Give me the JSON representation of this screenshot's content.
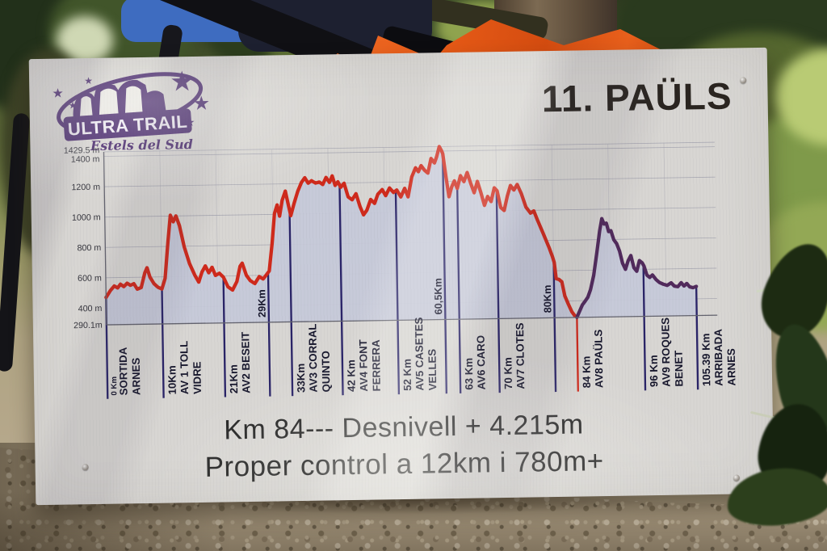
{
  "board": {
    "logo": {
      "title": "ULTRA TRAIL",
      "subtitle": "Estels del Sud"
    },
    "station_title": "11. PAÜLS",
    "footer": {
      "line1": "Km 84--- Desnivell + 4.215m",
      "line2": "Proper control a 12km i 780m+"
    }
  },
  "chart_data": {
    "type": "area",
    "title": "11. PAÜLS",
    "xlabel": "Km",
    "ylabel": "m",
    "xlim": [
      0,
      105.39
    ],
    "ylim": [
      290.1,
      1429.5
    ],
    "legend": "none",
    "grid": "on",
    "x_grid_step_km": 10,
    "colors": {
      "completed_segment": "#cf2a1c",
      "remaining_segment": "#512a5c",
      "checkpoint_line": "#2a2468",
      "area_fill": "#c6c9d9",
      "grid_line": "#a3a3af",
      "axis_line": "#63636e",
      "label_text": "#16162c",
      "tick_text": "#35353d"
    },
    "split_km": 84,
    "y_ticks": [
      {
        "value": 1429.5,
        "label": "1429.5 m"
      },
      {
        "value": 1400,
        "label": "1400 m"
      },
      {
        "value": 1200,
        "label": "1200 m"
      },
      {
        "value": 1000,
        "label": "1000 m"
      },
      {
        "value": 800,
        "label": "800 m"
      },
      {
        "value": 600,
        "label": "600 m"
      },
      {
        "value": 400,
        "label": "400 m"
      },
      {
        "value": 290.1,
        "label": "290.1m"
      }
    ],
    "checkpoints": [
      {
        "km": 0,
        "km_label": "0 Km",
        "name_lines": [
          "SORTIDA",
          "ARNES"
        ],
        "small_km": true
      },
      {
        "km": 10,
        "km_label": "10Km",
        "name_lines": [
          "AV 1 TOLL",
          "VIDRE"
        ]
      },
      {
        "km": 21,
        "km_label": "21Km",
        "name_lines": [
          "AV2 BESEIT"
        ]
      },
      {
        "km": 29,
        "km_label": "29Km",
        "name_lines": [],
        "inside": true
      },
      {
        "km": 33,
        "km_label": "33Km",
        "name_lines": [
          "AV3 CORRAL",
          "QUINTO"
        ]
      },
      {
        "km": 42,
        "km_label": "42 Km",
        "name_lines": [
          "AV4 FONT",
          "FERRERA"
        ]
      },
      {
        "km": 52,
        "km_label": "52 Km",
        "name_lines": [
          "AV5 CASETES",
          "VELLES"
        ]
      },
      {
        "km": 60.5,
        "km_label": "60,5Km",
        "name_lines": [],
        "inside": true
      },
      {
        "km": 63,
        "km_label": "63 Km",
        "name_lines": [
          "AV6 CARO"
        ]
      },
      {
        "km": 70,
        "km_label": "70 Km",
        "name_lines": [
          "AV7 CLOTES"
        ]
      },
      {
        "km": 80,
        "km_label": "80Km",
        "name_lines": [],
        "inside": true
      },
      {
        "km": 84,
        "km_label": "84 Km",
        "name_lines": [
          "AV8 PAÜLS"
        ],
        "line_color": "#cf2a1c"
      },
      {
        "km": 96,
        "km_label": "96 Km",
        "name_lines": [
          "AV9 ROQUES",
          "BENET"
        ]
      },
      {
        "km": 105.39,
        "km_label": "105.39 Km",
        "name_lines": [
          "ARRIBADA",
          "ARNES"
        ]
      }
    ],
    "profile": [
      [
        0,
        470
      ],
      [
        0.8,
        515
      ],
      [
        1.5,
        545
      ],
      [
        2.1,
        532
      ],
      [
        2.6,
        556
      ],
      [
        3.2,
        540
      ],
      [
        3.8,
        562
      ],
      [
        4.4,
        548
      ],
      [
        5,
        558
      ],
      [
        5.6,
        522
      ],
      [
        6.3,
        532
      ],
      [
        7,
        630
      ],
      [
        7.4,
        662
      ],
      [
        7.9,
        600
      ],
      [
        8.6,
        556
      ],
      [
        9.3,
        532
      ],
      [
        10,
        520
      ],
      [
        10.6,
        590
      ],
      [
        11.2,
        830
      ],
      [
        11.7,
        1005
      ],
      [
        12.2,
        962
      ],
      [
        12.7,
        1000
      ],
      [
        13.3,
        935
      ],
      [
        14.1,
        795
      ],
      [
        15,
        685
      ],
      [
        15.9,
        608
      ],
      [
        16.6,
        562
      ],
      [
        17.2,
        628
      ],
      [
        17.8,
        668
      ],
      [
        18.4,
        622
      ],
      [
        19,
        658
      ],
      [
        19.6,
        604
      ],
      [
        20.3,
        618
      ],
      [
        21,
        592
      ],
      [
        21.8,
        528
      ],
      [
        22.6,
        506
      ],
      [
        23.4,
        562
      ],
      [
        24,
        662
      ],
      [
        24.4,
        682
      ],
      [
        25.1,
        602
      ],
      [
        25.8,
        566
      ],
      [
        26.6,
        546
      ],
      [
        27.4,
        592
      ],
      [
        28.1,
        576
      ],
      [
        28.8,
        608
      ],
      [
        29.2,
        628
      ],
      [
        29.8,
        810
      ],
      [
        30.3,
        1005
      ],
      [
        30.8,
        1062
      ],
      [
        31.2,
        988
      ],
      [
        31.7,
        1092
      ],
      [
        32.3,
        1152
      ],
      [
        32.8,
        1062
      ],
      [
        33.2,
        990
      ],
      [
        33.8,
        1068
      ],
      [
        34.5,
        1148
      ],
      [
        35.2,
        1208
      ],
      [
        35.8,
        1238
      ],
      [
        36.4,
        1202
      ],
      [
        37,
        1218
      ],
      [
        37.7,
        1202
      ],
      [
        38.4,
        1208
      ],
      [
        39,
        1192
      ],
      [
        39.6,
        1238
      ],
      [
        40.2,
        1205
      ],
      [
        40.7,
        1248
      ],
      [
        41.2,
        1185
      ],
      [
        41.7,
        1208
      ],
      [
        42.2,
        1172
      ],
      [
        42.8,
        1198
      ],
      [
        43.5,
        1108
      ],
      [
        44.2,
        1088
      ],
      [
        44.9,
        1128
      ],
      [
        45.6,
        1042
      ],
      [
        46.2,
        988
      ],
      [
        46.8,
        1018
      ],
      [
        47.5,
        1088
      ],
      [
        48.2,
        1062
      ],
      [
        48.8,
        1122
      ],
      [
        49.6,
        1152
      ],
      [
        50.2,
        1112
      ],
      [
        50.9,
        1162
      ],
      [
        51.6,
        1132
      ],
      [
        52.2,
        1148
      ],
      [
        52.9,
        1102
      ],
      [
        53.6,
        1158
      ],
      [
        54.2,
        1102
      ],
      [
        54.9,
        1232
      ],
      [
        55.6,
        1292
      ],
      [
        56.1,
        1266
      ],
      [
        56.6,
        1306
      ],
      [
        57.2,
        1276
      ],
      [
        57.8,
        1256
      ],
      [
        58.4,
        1352
      ],
      [
        59,
        1322
      ],
      [
        59.4,
        1362
      ],
      [
        59.9,
        1429.5
      ],
      [
        60.3,
        1402
      ],
      [
        60.5,
        1382
      ],
      [
        61,
        1232
      ],
      [
        61.5,
        1098
      ],
      [
        62,
        1162
      ],
      [
        62.5,
        1202
      ],
      [
        63,
        1152
      ],
      [
        63.6,
        1236
      ],
      [
        64.2,
        1196
      ],
      [
        64.8,
        1256
      ],
      [
        65.4,
        1186
      ],
      [
        66,
        1122
      ],
      [
        66.6,
        1196
      ],
      [
        67.2,
        1122
      ],
      [
        67.8,
        1038
      ],
      [
        68.4,
        1096
      ],
      [
        69,
        1062
      ],
      [
        69.6,
        1152
      ],
      [
        70.1,
        1132
      ],
      [
        70.7,
        1022
      ],
      [
        71.3,
        1002
      ],
      [
        71.9,
        1096
      ],
      [
        72.5,
        1166
      ],
      [
        73.1,
        1136
      ],
      [
        73.7,
        1172
      ],
      [
        74.4,
        1112
      ],
      [
        75.2,
        1022
      ],
      [
        76,
        982
      ],
      [
        76.6,
        996
      ],
      [
        77.2,
        938
      ],
      [
        78.2,
        848
      ],
      [
        79.2,
        755
      ],
      [
        79.8,
        692
      ],
      [
        80.1,
        655
      ],
      [
        80.4,
        548
      ],
      [
        80.9,
        542
      ],
      [
        81.4,
        526
      ],
      [
        81.9,
        432
      ],
      [
        82.5,
        378
      ],
      [
        83.1,
        328
      ],
      [
        83.6,
        302
      ],
      [
        84,
        291
      ],
      [
        84.5,
        332
      ],
      [
        85,
        372
      ],
      [
        85.5,
        396
      ],
      [
        86,
        422
      ],
      [
        86.5,
        472
      ],
      [
        87.1,
        565
      ],
      [
        87.7,
        705
      ],
      [
        88.3,
        858
      ],
      [
        88.7,
        938
      ],
      [
        89.1,
        902
      ],
      [
        89.5,
        908
      ],
      [
        89.9,
        852
      ],
      [
        90.3,
        858
      ],
      [
        90.8,
        798
      ],
      [
        91.3,
        772
      ],
      [
        91.8,
        722
      ],
      [
        92.3,
        642
      ],
      [
        92.8,
        602
      ],
      [
        93.3,
        658
      ],
      [
        93.8,
        692
      ],
      [
        94.3,
        612
      ],
      [
        94.8,
        588
      ],
      [
        95.3,
        658
      ],
      [
        95.8,
        642
      ],
      [
        96.1,
        622
      ],
      [
        96.6,
        562
      ],
      [
        97.1,
        546
      ],
      [
        97.6,
        562
      ],
      [
        98.2,
        532
      ],
      [
        98.8,
        512
      ],
      [
        99.5,
        500
      ],
      [
        100.2,
        492
      ],
      [
        100.9,
        508
      ],
      [
        101.5,
        486
      ],
      [
        102.1,
        482
      ],
      [
        102.7,
        508
      ],
      [
        103.2,
        486
      ],
      [
        103.7,
        502
      ],
      [
        104.2,
        480
      ],
      [
        104.8,
        474
      ],
      [
        105.39,
        482
      ]
    ]
  }
}
